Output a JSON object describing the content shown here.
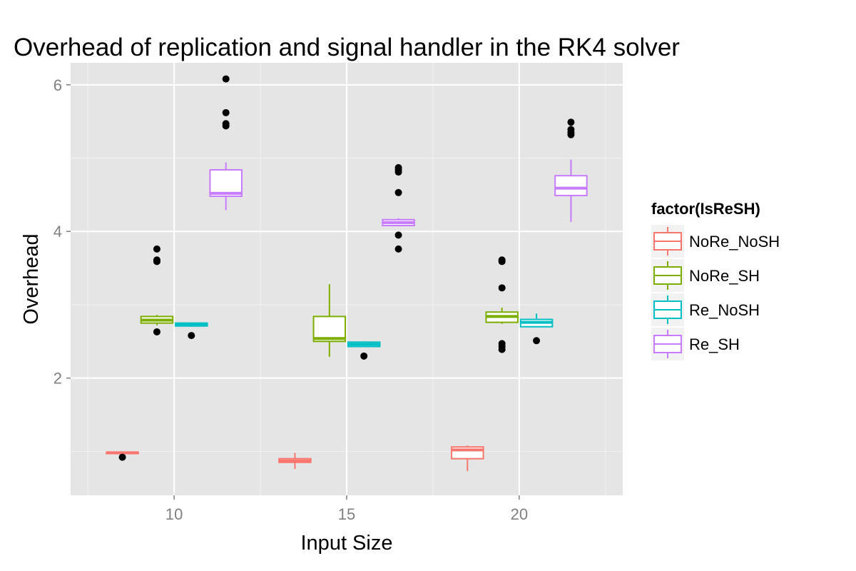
{
  "chart_data": {
    "type": "box",
    "title": "Overhead of replication and signal handler in  the RK4 solver",
    "xlabel": "Input Size",
    "ylabel": "Overhead",
    "xlim": [
      7,
      23
    ],
    "ylim": [
      0.4,
      6.3
    ],
    "x_ticks": [
      10,
      15,
      20
    ],
    "y_ticks": [
      2,
      4,
      6
    ],
    "grid": true,
    "legend": {
      "title": "factor(IsReSH)",
      "placement": "right",
      "entries": [
        "NoRe_NoSH",
        "NoRe_SH",
        "Re_NoSH",
        "Re_SH"
      ]
    },
    "series": [
      {
        "name": "NoRe_NoSH",
        "color": "#F8766D",
        "boxes": [
          {
            "x": 10,
            "q1": 0.97,
            "median": 0.98,
            "q3": 0.99,
            "whisker_low": 0.96,
            "whisker_high": 1.0,
            "outliers": [
              0.92
            ]
          },
          {
            "x": 15,
            "q1": 0.85,
            "median": 0.87,
            "q3": 0.9,
            "whisker_low": 0.76,
            "whisker_high": 0.98,
            "outliers": []
          },
          {
            "x": 20,
            "q1": 0.9,
            "median": 1.02,
            "q3": 1.06,
            "whisker_low": 0.73,
            "whisker_high": 1.08,
            "outliers": []
          }
        ]
      },
      {
        "name": "NoRe_SH",
        "color": "#7CAE00",
        "boxes": [
          {
            "x": 10,
            "q1": 2.75,
            "median": 2.79,
            "q3": 2.84,
            "whisker_low": 2.72,
            "whisker_high": 2.86,
            "outliers": [
              2.63,
              3.59,
              3.61,
              3.76
            ]
          },
          {
            "x": 15,
            "q1": 2.5,
            "median": 2.54,
            "q3": 2.84,
            "whisker_low": 2.29,
            "whisker_high": 3.28,
            "outliers": []
          },
          {
            "x": 20,
            "q1": 2.76,
            "median": 2.84,
            "q3": 2.9,
            "whisker_low": 2.74,
            "whisker_high": 2.96,
            "outliers": [
              2.39,
              2.43,
              2.47,
              3.23,
              3.59,
              3.61
            ]
          }
        ]
      },
      {
        "name": "Re_NoSH",
        "color": "#00BFC4",
        "boxes": [
          {
            "x": 10,
            "q1": 2.71,
            "median": 2.73,
            "q3": 2.75,
            "whisker_low": 2.7,
            "whisker_high": 2.76,
            "outliers": [
              2.58
            ]
          },
          {
            "x": 15,
            "q1": 2.43,
            "median": 2.46,
            "q3": 2.49,
            "whisker_low": 2.42,
            "whisker_high": 2.5,
            "outliers": [
              2.3
            ]
          },
          {
            "x": 20,
            "q1": 2.7,
            "median": 2.76,
            "q3": 2.8,
            "whisker_low": 2.69,
            "whisker_high": 2.88,
            "outliers": [
              2.51
            ]
          }
        ]
      },
      {
        "name": "Re_SH",
        "color": "#C77CFF",
        "boxes": [
          {
            "x": 10,
            "q1": 4.48,
            "median": 4.52,
            "q3": 4.84,
            "whisker_low": 4.29,
            "whisker_high": 4.94,
            "outliers": [
              5.44,
              5.47,
              5.62,
              6.08
            ]
          },
          {
            "x": 15,
            "q1": 4.08,
            "median": 4.12,
            "q3": 4.16,
            "whisker_low": 4.07,
            "whisker_high": 4.18,
            "outliers": [
              3.76,
              3.95,
              4.53,
              4.81,
              4.84,
              4.87
            ]
          },
          {
            "x": 20,
            "q1": 4.49,
            "median": 4.59,
            "q3": 4.76,
            "whisker_low": 4.13,
            "whisker_high": 4.98,
            "outliers": [
              5.32,
              5.35,
              5.39,
              5.49
            ]
          }
        ]
      }
    ]
  }
}
